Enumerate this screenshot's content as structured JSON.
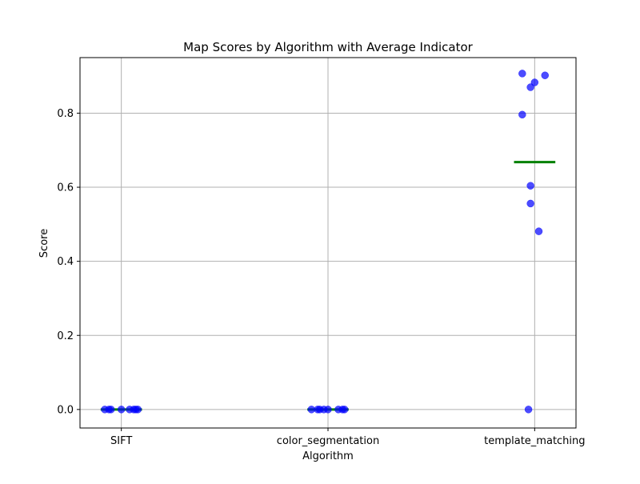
{
  "chart_data": {
    "type": "scatter",
    "title": "Map Scores by Algorithm with Average Indicator",
    "xlabel": "Algorithm",
    "ylabel": "Score",
    "categories": [
      "SIFT",
      "color_segmentation",
      "template_matching"
    ],
    "ylim": [
      -0.05,
      0.95
    ],
    "yticks": [
      "0.0",
      "0.2",
      "0.4",
      "0.6",
      "0.8"
    ],
    "grid": true,
    "point_color": "#0000ff",
    "average_color": "#008000",
    "points": [
      {
        "category": "SIFT",
        "jitter": -0.08,
        "y": 0.0
      },
      {
        "category": "SIFT",
        "jitter": -0.06,
        "y": 0.0
      },
      {
        "category": "SIFT",
        "jitter": -0.05,
        "y": 0.0
      },
      {
        "category": "SIFT",
        "jitter": 0.0,
        "y": 0.0
      },
      {
        "category": "SIFT",
        "jitter": 0.04,
        "y": 0.0
      },
      {
        "category": "SIFT",
        "jitter": 0.06,
        "y": 0.0
      },
      {
        "category": "SIFT",
        "jitter": 0.07,
        "y": 0.0
      },
      {
        "category": "SIFT",
        "jitter": 0.08,
        "y": 0.0
      },
      {
        "category": "color_segmentation",
        "jitter": -0.08,
        "y": 0.0
      },
      {
        "category": "color_segmentation",
        "jitter": -0.05,
        "y": 0.0
      },
      {
        "category": "color_segmentation",
        "jitter": -0.04,
        "y": 0.0
      },
      {
        "category": "color_segmentation",
        "jitter": -0.02,
        "y": 0.0
      },
      {
        "category": "color_segmentation",
        "jitter": 0.0,
        "y": 0.0
      },
      {
        "category": "color_segmentation",
        "jitter": 0.05,
        "y": 0.0
      },
      {
        "category": "color_segmentation",
        "jitter": 0.07,
        "y": 0.0
      },
      {
        "category": "color_segmentation",
        "jitter": 0.08,
        "y": 0.0
      },
      {
        "category": "template_matching",
        "jitter": -0.06,
        "y": 0.907
      },
      {
        "category": "template_matching",
        "jitter": 0.0,
        "y": 0.883
      },
      {
        "category": "template_matching",
        "jitter": 0.05,
        "y": 0.902
      },
      {
        "category": "template_matching",
        "jitter": -0.02,
        "y": 0.87
      },
      {
        "category": "template_matching",
        "jitter": -0.06,
        "y": 0.796
      },
      {
        "category": "template_matching",
        "jitter": -0.02,
        "y": 0.604
      },
      {
        "category": "template_matching",
        "jitter": -0.02,
        "y": 0.556
      },
      {
        "category": "template_matching",
        "jitter": 0.02,
        "y": 0.481
      },
      {
        "category": "template_matching",
        "jitter": -0.03,
        "y": 0.0
      }
    ],
    "averages": [
      {
        "category": "SIFT",
        "y": 0.0
      },
      {
        "category": "color_segmentation",
        "y": 0.0
      },
      {
        "category": "template_matching",
        "y": 0.668
      }
    ]
  }
}
